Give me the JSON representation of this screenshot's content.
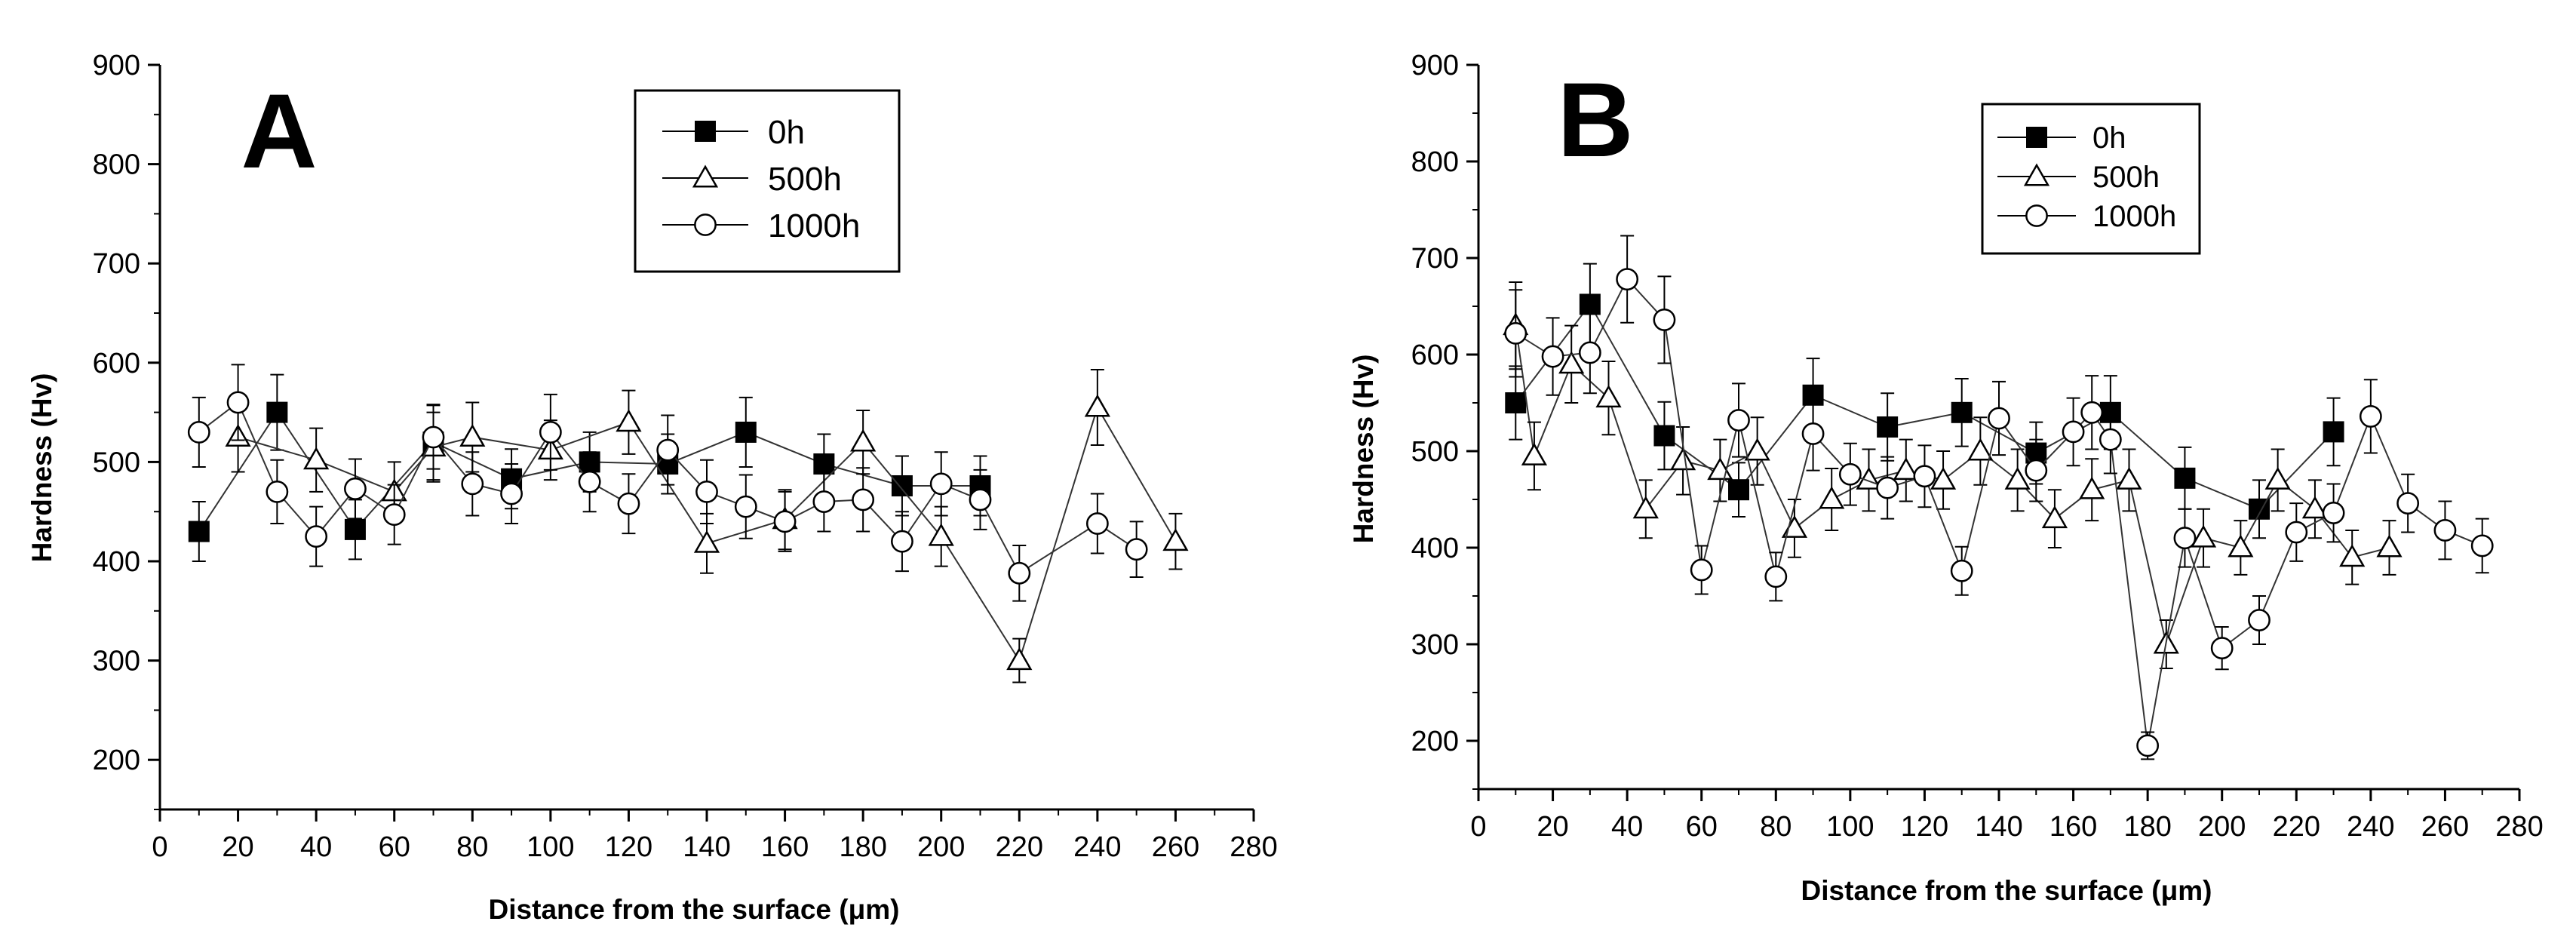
{
  "figure": "Two-panel hardness profile chart",
  "chart_data": [
    {
      "type": "line",
      "panel_label": "A",
      "title": "",
      "xlabel": "Distance from the surface (μm)",
      "ylabel": "Hardness (Hv)",
      "xlim": [
        0,
        280
      ],
      "ylim": [
        150,
        900
      ],
      "x_ticks": [
        0,
        20,
        40,
        60,
        80,
        100,
        120,
        140,
        160,
        180,
        200,
        220,
        240,
        260,
        280
      ],
      "y_ticks": [
        200,
        300,
        400,
        500,
        600,
        700,
        800,
        900
      ],
      "legend_position": "top-center",
      "series": [
        {
          "name": "0h",
          "marker": "filled-square",
          "x": [
            10,
            30,
            50,
            70,
            90,
            110,
            130,
            150,
            170,
            190,
            210
          ],
          "y": [
            430,
            550,
            432,
            520,
            483,
            500,
            498,
            530,
            498,
            476,
            476
          ],
          "err": [
            30,
            38,
            30,
            38,
            30,
            30,
            30,
            35,
            30,
            30,
            30
          ]
        },
        {
          "name": "500h",
          "marker": "open-triangle",
          "x": [
            20,
            40,
            60,
            70,
            80,
            100,
            120,
            140,
            160,
            180,
            200,
            220,
            240,
            260
          ],
          "y": [
            525,
            502,
            470,
            515,
            525,
            512,
            540,
            418,
            442,
            520,
            425,
            300,
            555,
            420
          ],
          "err": [
            35,
            32,
            30,
            35,
            35,
            30,
            32,
            30,
            30,
            32,
            30,
            22,
            38,
            28
          ]
        },
        {
          "name": "1000h",
          "marker": "open-circle",
          "x": [
            10,
            20,
            30,
            40,
            50,
            60,
            70,
            80,
            90,
            100,
            110,
            120,
            130,
            140,
            150,
            160,
            170,
            180,
            190,
            200,
            210,
            220,
            240,
            250
          ],
          "y": [
            530,
            560,
            470,
            425,
            473,
            447,
            525,
            478,
            468,
            530,
            480,
            458,
            512,
            470,
            455,
            440,
            460,
            462,
            420,
            478,
            462,
            388,
            438,
            412
          ],
          "err": [
            35,
            38,
            32,
            30,
            30,
            30,
            32,
            32,
            30,
            38,
            30,
            30,
            35,
            32,
            32,
            30,
            30,
            32,
            30,
            32,
            30,
            28,
            30,
            28
          ]
        }
      ]
    },
    {
      "type": "line",
      "panel_label": "B",
      "title": "",
      "xlabel": "Distance from the surface (μm)",
      "ylabel": "Hardness (Hv)",
      "xlim": [
        0,
        280
      ],
      "ylim": [
        150,
        900
      ],
      "x_ticks": [
        0,
        20,
        40,
        60,
        80,
        100,
        120,
        140,
        160,
        180,
        200,
        220,
        240,
        260,
        280
      ],
      "y_ticks": [
        200,
        300,
        400,
        500,
        600,
        700,
        800,
        900
      ],
      "legend_position": "top-center",
      "series": [
        {
          "name": "0h",
          "marker": "filled-square",
          "x": [
            10,
            30,
            50,
            70,
            90,
            110,
            130,
            150,
            170,
            190,
            210,
            230
          ],
          "y": [
            550,
            652,
            516,
            460,
            558,
            525,
            540,
            498,
            540,
            472,
            440,
            520
          ],
          "err": [
            38,
            42,
            35,
            28,
            38,
            35,
            35,
            32,
            38,
            32,
            30,
            35
          ]
        },
        {
          "name": "500h",
          "marker": "open-triangle",
          "x": [
            10,
            15,
            25,
            35,
            45,
            55,
            65,
            75,
            85,
            95,
            105,
            115,
            125,
            135,
            145,
            155,
            165,
            175,
            185,
            195,
            205,
            215,
            225,
            235,
            245
          ],
          "y": [
            630,
            495,
            590,
            555,
            440,
            490,
            480,
            500,
            420,
            450,
            470,
            480,
            470,
            500,
            470,
            430,
            460,
            470,
            300,
            410,
            400,
            470,
            440,
            390,
            400
          ],
          "err": [
            45,
            35,
            40,
            38,
            30,
            35,
            32,
            35,
            30,
            32,
            32,
            32,
            30,
            35,
            32,
            30,
            32,
            32,
            25,
            30,
            28,
            32,
            30,
            28,
            28
          ]
        },
        {
          "name": "1000h",
          "marker": "open-circle",
          "x": [
            10,
            20,
            30,
            40,
            50,
            60,
            70,
            80,
            90,
            100,
            110,
            120,
            130,
            140,
            150,
            160,
            165,
            170,
            180,
            190,
            200,
            210,
            220,
            230,
            240,
            250,
            260,
            270
          ],
          "y": [
            622,
            598,
            602,
            678,
            636,
            377,
            532,
            370,
            518,
            476,
            462,
            474,
            376,
            534,
            480,
            520,
            540,
            512,
            195,
            410,
            296,
            325,
            416,
            436,
            536,
            446,
            418,
            402
          ],
          "err": [
            45,
            40,
            42,
            45,
            45,
            25,
            38,
            25,
            38,
            32,
            32,
            32,
            25,
            38,
            32,
            35,
            38,
            35,
            14,
            30,
            22,
            25,
            30,
            30,
            38,
            30,
            30,
            28
          ]
        }
      ]
    }
  ]
}
